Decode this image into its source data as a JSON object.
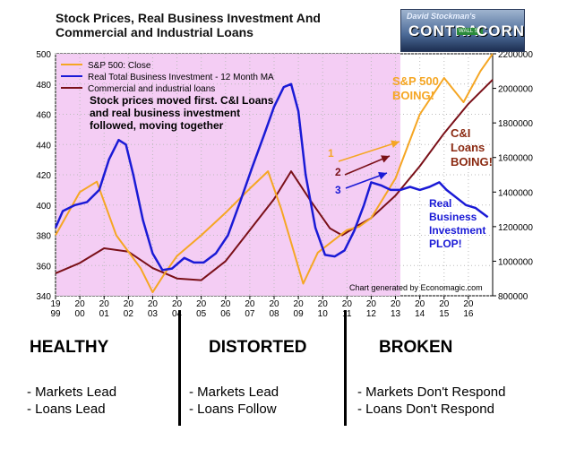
{
  "title_line1": "Stock Prices, Real Business Investment And",
  "title_line2": "Commercial and Industrial Loans",
  "logo": {
    "line1": "David Stockman's",
    "word1": "CONTRA",
    "word2": "CORNER",
    "sign": "WALL ST"
  },
  "annotations": {
    "stock_note_1": "Stock prices moved first. C&I Loans",
    "stock_note_2": "and real business investment",
    "stock_note_3": "followed, moving together",
    "sp_label_1": "S&P 500",
    "sp_label_2": "BOING!",
    "ci_label_1": "C&I",
    "ci_label_2": "Loans",
    "ci_label_3": "BOING!",
    "rbi_label_1": "Real",
    "rbi_label_2": "Business",
    "rbi_label_3": "Investment",
    "rbi_label_4": "PLOP!",
    "arrow1": "1",
    "arrow2": "2",
    "arrow3": "3",
    "credit": "Chart generated by Economagic.com"
  },
  "sections": [
    {
      "heading": "HEALTHY",
      "bullets": [
        "- Markets Lead",
        "- Loans Lead"
      ]
    },
    {
      "heading": "DISTORTED",
      "bullets": [
        "- Markets Lead",
        "- Loans Follow"
      ]
    },
    {
      "heading": "BROKEN",
      "bullets": [
        "- Markets Don't Respond",
        "- Loans Don't Respond"
      ]
    }
  ],
  "colors": {
    "sp500": "#f5a623",
    "investment": "#1a1ad6",
    "loans": "#7a1018",
    "shade": "#f4cdf4",
    "sp_label": "#f5a623",
    "ci_label": "#8b2a12",
    "rbi_label": "#1a1ad6"
  },
  "chart_data": {
    "type": "line",
    "legend_position": "top-left",
    "grid": true,
    "x_ticks": [
      "19\n99",
      "20\n00",
      "20\n01",
      "20\n02",
      "20\n03",
      "20\n04",
      "20\n05",
      "20\n06",
      "20\n07",
      "20\n08",
      "20\n09",
      "20\n10",
      "20\n11",
      "20\n12",
      "20\n13",
      "20\n14",
      "20\n15",
      "20\n16"
    ],
    "xlim": [
      1999,
      2017
    ],
    "shaded_until": 2013.2,
    "y_left_ticks": [
      "340",
      "360",
      "380",
      "400",
      "420",
      "440",
      "460",
      "480",
      "500"
    ],
    "ylim_left": [
      340,
      500
    ],
    "y_right_ticks": [
      "800000",
      "1000000",
      "1200000",
      "1400000",
      "1600000",
      "1800000",
      "2000000",
      "2200000"
    ],
    "ylim_right": [
      800000,
      2200000
    ],
    "series": [
      {
        "name": "S&P 500: Close",
        "axis": "right",
        "points": [
          [
            1999.0,
            1150000
          ],
          [
            2000.0,
            1400000
          ],
          [
            2000.7,
            1460000
          ],
          [
            2001.5,
            1150000
          ],
          [
            2002.5,
            960000
          ],
          [
            2003.0,
            820000
          ],
          [
            2003.5,
            930000
          ],
          [
            2004.0,
            1030000
          ],
          [
            2005.0,
            1150000
          ],
          [
            2006.0,
            1280000
          ],
          [
            2007.0,
            1420000
          ],
          [
            2007.75,
            1520000
          ],
          [
            2008.3,
            1300000
          ],
          [
            2009.2,
            870000
          ],
          [
            2009.8,
            1050000
          ],
          [
            2011.0,
            1180000
          ],
          [
            2011.5,
            1200000
          ],
          [
            2012.0,
            1250000
          ],
          [
            2013.0,
            1480000
          ],
          [
            2014.0,
            1850000
          ],
          [
            2015.0,
            2060000
          ],
          [
            2015.8,
            1920000
          ],
          [
            2016.5,
            2100000
          ],
          [
            2017.0,
            2200000
          ]
        ]
      },
      {
        "name": "Real Total Business Investment - 12 Month MA",
        "axis": "left",
        "points": [
          [
            1999.0,
            385
          ],
          [
            1999.3,
            396
          ],
          [
            1999.8,
            400
          ],
          [
            2000.3,
            402
          ],
          [
            2000.8,
            410
          ],
          [
            2001.2,
            430
          ],
          [
            2001.6,
            443
          ],
          [
            2001.9,
            440
          ],
          [
            2002.2,
            420
          ],
          [
            2002.6,
            390
          ],
          [
            2003.0,
            368
          ],
          [
            2003.4,
            357
          ],
          [
            2003.8,
            358
          ],
          [
            2004.3,
            365
          ],
          [
            2004.7,
            362
          ],
          [
            2005.1,
            362
          ],
          [
            2005.6,
            368
          ],
          [
            2006.1,
            380
          ],
          [
            2006.6,
            402
          ],
          [
            2007.1,
            425
          ],
          [
            2007.6,
            447
          ],
          [
            2008.0,
            465
          ],
          [
            2008.4,
            478
          ],
          [
            2008.7,
            480
          ],
          [
            2009.0,
            462
          ],
          [
            2009.3,
            420
          ],
          [
            2009.7,
            385
          ],
          [
            2010.1,
            367
          ],
          [
            2010.5,
            366
          ],
          [
            2010.9,
            370
          ],
          [
            2011.3,
            383
          ],
          [
            2011.7,
            400
          ],
          [
            2012.0,
            415
          ],
          [
            2012.4,
            413
          ],
          [
            2012.8,
            410
          ],
          [
            2013.2,
            410
          ],
          [
            2013.6,
            412
          ],
          [
            2014.0,
            410
          ],
          [
            2014.4,
            412
          ],
          [
            2014.8,
            415
          ],
          [
            2015.1,
            410
          ],
          [
            2015.5,
            405
          ],
          [
            2015.9,
            400
          ],
          [
            2016.3,
            398
          ],
          [
            2016.8,
            392
          ]
        ]
      },
      {
        "name": "Commercial and industrial loans",
        "axis": "right",
        "points": [
          [
            1999.0,
            930000
          ],
          [
            2000.0,
            990000
          ],
          [
            2001.0,
            1075000
          ],
          [
            2002.0,
            1055000
          ],
          [
            2003.0,
            960000
          ],
          [
            2004.0,
            900000
          ],
          [
            2005.0,
            890000
          ],
          [
            2006.0,
            1000000
          ],
          [
            2007.0,
            1180000
          ],
          [
            2008.0,
            1360000
          ],
          [
            2008.7,
            1520000
          ],
          [
            2009.5,
            1350000
          ],
          [
            2010.3,
            1190000
          ],
          [
            2010.8,
            1150000
          ],
          [
            2011.5,
            1210000
          ],
          [
            2012.0,
            1250000
          ],
          [
            2013.0,
            1380000
          ],
          [
            2014.0,
            1550000
          ],
          [
            2015.0,
            1740000
          ],
          [
            2016.0,
            1910000
          ],
          [
            2017.0,
            2050000
          ]
        ]
      }
    ]
  }
}
